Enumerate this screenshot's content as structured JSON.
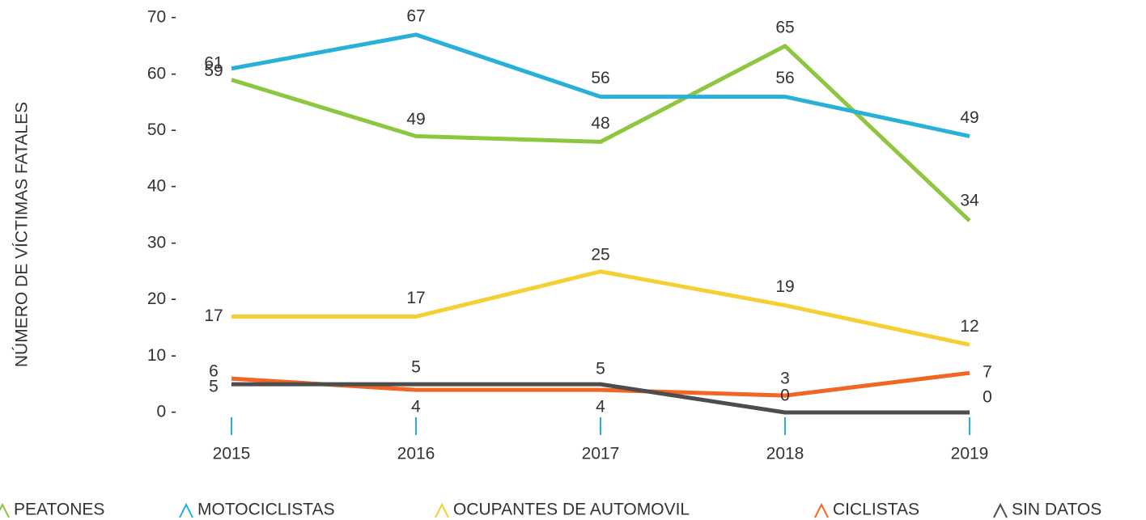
{
  "chart_data": {
    "type": "line",
    "y_label": "NÚMERO DE VÍCTIMAS FATALES",
    "categories": [
      "2015",
      "2016",
      "2017",
      "2018",
      "2019"
    ],
    "series": [
      {
        "name": "PEATONES",
        "color": "#8dc63f",
        "values": [
          59,
          49,
          48,
          65,
          34
        ]
      },
      {
        "name": "MOTOCICLISTAS",
        "color": "#29b0d9",
        "values": [
          61,
          67,
          56,
          56,
          49
        ]
      },
      {
        "name": "OCUPANTES DE AUTOMOVIL",
        "color": "#f5d033",
        "values": [
          17,
          17,
          25,
          19,
          12
        ]
      },
      {
        "name": "CICLISTAS",
        "color": "#f26522",
        "values": [
          6,
          4,
          4,
          3,
          7
        ]
      },
      {
        "name": "SIN DATOS",
        "color": "#4d4d4d",
        "values": [
          5,
          5,
          5,
          0,
          0
        ]
      }
    ],
    "ylim": [
      0,
      70
    ],
    "yticks": [
      {
        "value": 0,
        "label": "0 -"
      },
      {
        "value": 10,
        "label": "10 -"
      },
      {
        "value": 20,
        "label": "20 -"
      },
      {
        "value": 30,
        "label": "30 -"
      },
      {
        "value": 40,
        "label": "40 -"
      },
      {
        "value": 50,
        "label": "50 -"
      },
      {
        "value": 60,
        "label": "60 -"
      },
      {
        "value": 70,
        "label": "70 -"
      }
    ],
    "xtick_color": "#29b0d9",
    "legend": "bottom"
  }
}
